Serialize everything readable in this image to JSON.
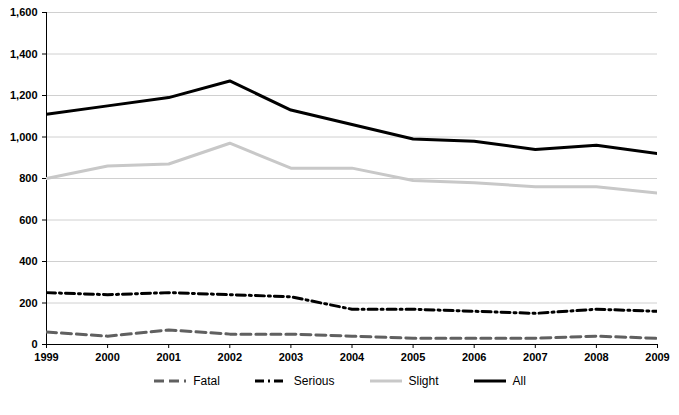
{
  "chart_data": {
    "type": "line",
    "x": [
      1999,
      2000,
      2001,
      2002,
      2003,
      2004,
      2005,
      2006,
      2007,
      2008,
      2009
    ],
    "xlim": [
      1999,
      2009
    ],
    "xticks": [
      1999,
      2000,
      2001,
      2002,
      2003,
      2004,
      2005,
      2006,
      2007,
      2008,
      2009
    ],
    "ylim": [
      0,
      1600
    ],
    "yticks": [
      0,
      200,
      400,
      600,
      800,
      {
        "value": 1000,
        "label": "1,000"
      },
      {
        "value": 1200,
        "label": "1,200"
      },
      {
        "value": 1400,
        "label": "1,400"
      },
      {
        "value": 1600,
        "label": "1,600"
      }
    ],
    "grid": true,
    "legend": "bottom",
    "series": [
      {
        "name": "Fatal",
        "color": "#606060",
        "line_style": "dashed",
        "values": [
          60,
          40,
          70,
          50,
          50,
          40,
          30,
          30,
          30,
          40,
          30
        ]
      },
      {
        "name": "Serious",
        "color": "#000000",
        "line_style": "dashdot",
        "values": [
          250,
          240,
          250,
          240,
          230,
          170,
          170,
          160,
          150,
          170,
          160
        ]
      },
      {
        "name": "Slight",
        "color": "#c8c8c8",
        "line_style": "solid",
        "values": [
          800,
          860,
          870,
          970,
          850,
          850,
          790,
          780,
          760,
          760,
          730
        ]
      },
      {
        "name": "All",
        "color": "#000000",
        "line_style": "solid",
        "values": [
          1110,
          1150,
          1190,
          1270,
          1130,
          1060,
          990,
          980,
          940,
          960,
          920
        ]
      }
    ]
  }
}
